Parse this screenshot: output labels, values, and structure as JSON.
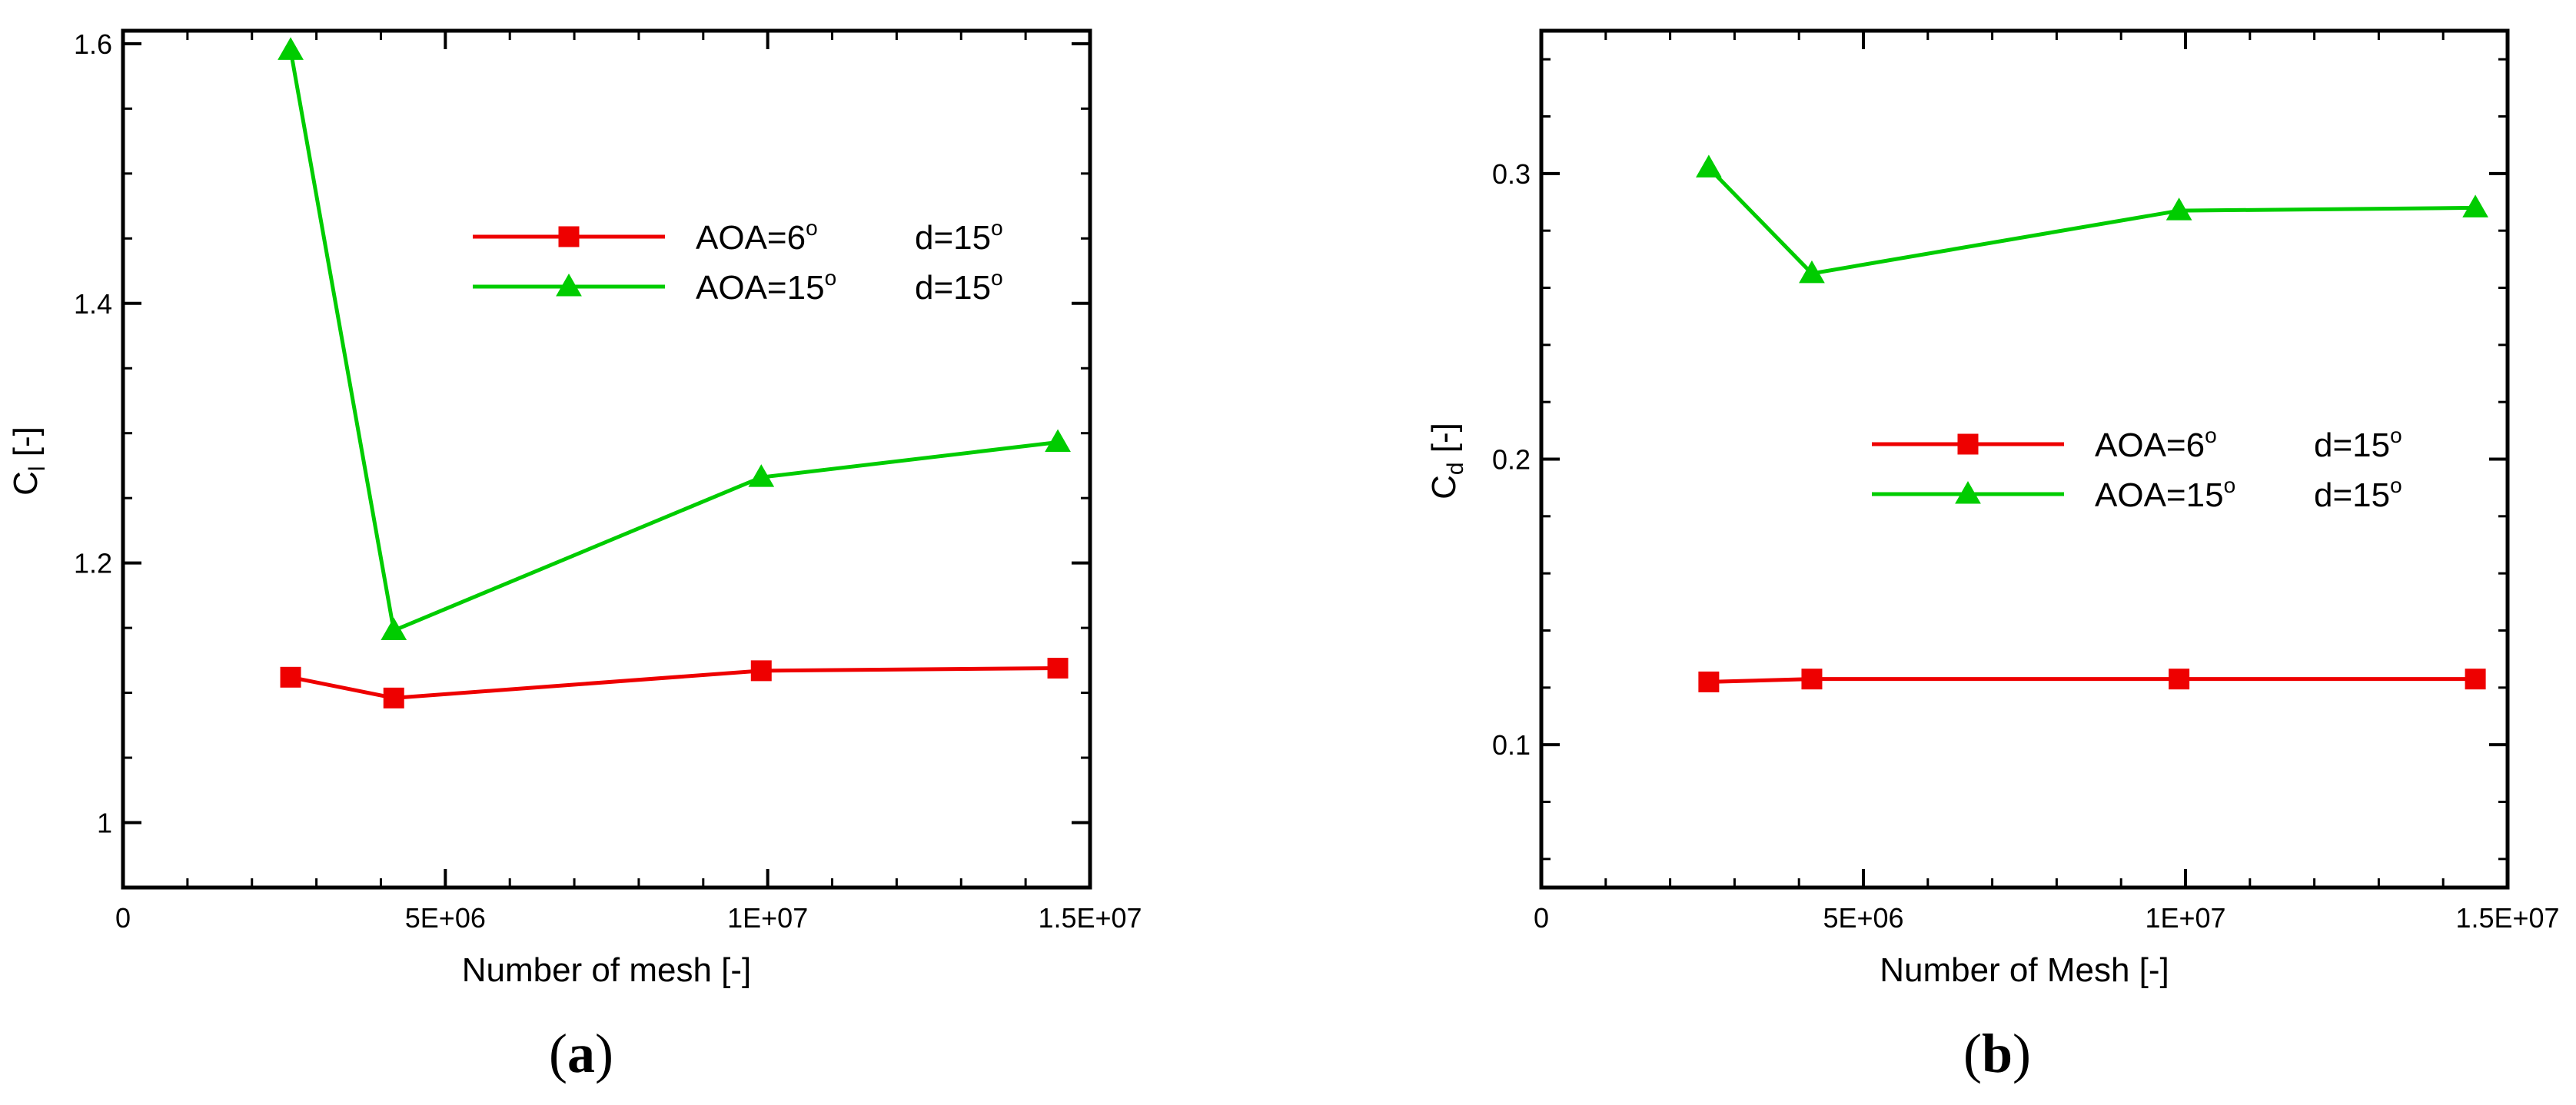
{
  "chart_data": [
    {
      "type": "line",
      "panel_label": "a",
      "xlabel": "Number of mesh  [-]",
      "ylabel_main": "C",
      "ylabel_sub": "l",
      "ylabel_unit": " [-]",
      "xlim": [
        0,
        15000000
      ],
      "ylim": [
        0.95,
        1.61
      ],
      "x_ticks": [
        {
          "value": 0,
          "label": "0"
        },
        {
          "value": 5000000,
          "label": "5E+06"
        },
        {
          "value": 10000000,
          "label": "1E+07"
        },
        {
          "value": 15000000,
          "label": "1.5E+07"
        }
      ],
      "x_minor_step": 1000000,
      "y_ticks": [
        {
          "value": 1.0,
          "label": "1"
        },
        {
          "value": 1.2,
          "label": "1.2"
        },
        {
          "value": 1.4,
          "label": "1.4"
        },
        {
          "value": 1.6,
          "label": "1.6"
        }
      ],
      "y_minor_step": 0.05,
      "grid": false,
      "legend_position": "upper-right",
      "series": [
        {
          "name": "AOA=6",
          "deg1": "o",
          "d_label": "d=15",
          "deg2": "o",
          "color": "#ee0000",
          "marker": "square",
          "x": [
            2600000,
            4200000,
            9900000,
            14500000
          ],
          "y": [
            1.112,
            1.096,
            1.117,
            1.119
          ]
        },
        {
          "name": "AOA=15",
          "deg1": "o",
          "d_label": "d=15",
          "deg2": "o",
          "color": "#00cc00",
          "marker": "triangle",
          "x": [
            2600000,
            4200000,
            9900000,
            14500000
          ],
          "y": [
            1.595,
            1.148,
            1.266,
            1.293
          ]
        }
      ]
    },
    {
      "type": "line",
      "panel_label": "b",
      "xlabel": "Number of Mesh [-]",
      "ylabel_main": "C",
      "ylabel_sub": "d",
      "ylabel_unit": " [-]",
      "xlim": [
        0,
        15000000
      ],
      "ylim": [
        0.05,
        0.35
      ],
      "x_ticks": [
        {
          "value": 0,
          "label": "0"
        },
        {
          "value": 5000000,
          "label": "5E+06"
        },
        {
          "value": 10000000,
          "label": "1E+07"
        },
        {
          "value": 15000000,
          "label": "1.5E+07"
        }
      ],
      "x_minor_step": 1000000,
      "y_ticks": [
        {
          "value": 0.1,
          "label": "0.1"
        },
        {
          "value": 0.2,
          "label": "0.2"
        },
        {
          "value": 0.3,
          "label": "0.3"
        }
      ],
      "y_minor_step": 0.02,
      "grid": false,
      "legend_position": "center-right",
      "series": [
        {
          "name": "AOA=6",
          "deg1": "o",
          "d_label": "d=15",
          "deg2": "o",
          "color": "#ee0000",
          "marker": "square",
          "x": [
            2600000,
            4200000,
            9900000,
            14500000
          ],
          "y": [
            0.122,
            0.123,
            0.123,
            0.123
          ]
        },
        {
          "name": "AOA=15",
          "deg1": "o",
          "d_label": "d=15",
          "deg2": "o",
          "color": "#00cc00",
          "marker": "triangle",
          "x": [
            2600000,
            4200000,
            9900000,
            14500000
          ],
          "y": [
            0.302,
            0.265,
            0.287,
            0.288
          ]
        }
      ]
    }
  ]
}
